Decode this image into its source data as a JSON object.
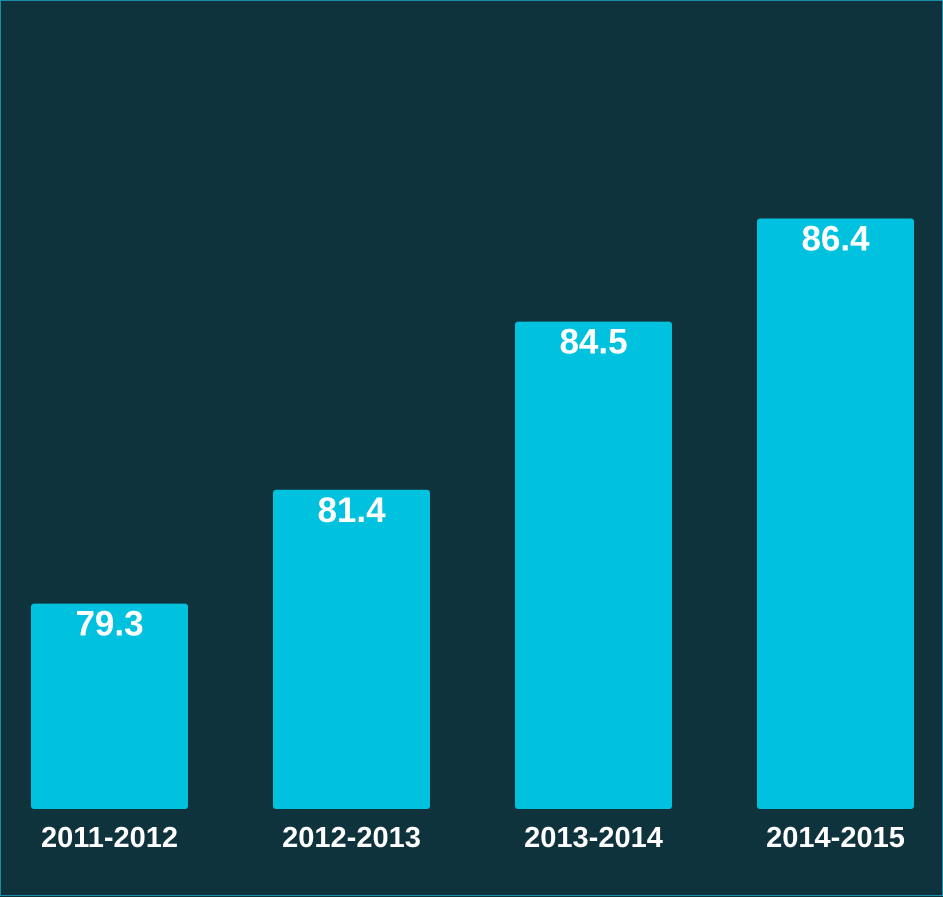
{
  "colors": {
    "background": "#0f333d",
    "border": "#1a8fa5",
    "bar": "#00c2de",
    "text": "#ffffff"
  },
  "chart_data": {
    "type": "bar",
    "categories": [
      "2011-2012",
      "2012-2013",
      "2013-2014",
      "2014-2015"
    ],
    "values": [
      79.3,
      81.4,
      84.5,
      86.4
    ],
    "value_labels": [
      "79.3",
      "81.4",
      "84.5",
      "86.4"
    ],
    "title": "",
    "xlabel": "",
    "ylabel": "",
    "grid": false,
    "legend": "none"
  }
}
